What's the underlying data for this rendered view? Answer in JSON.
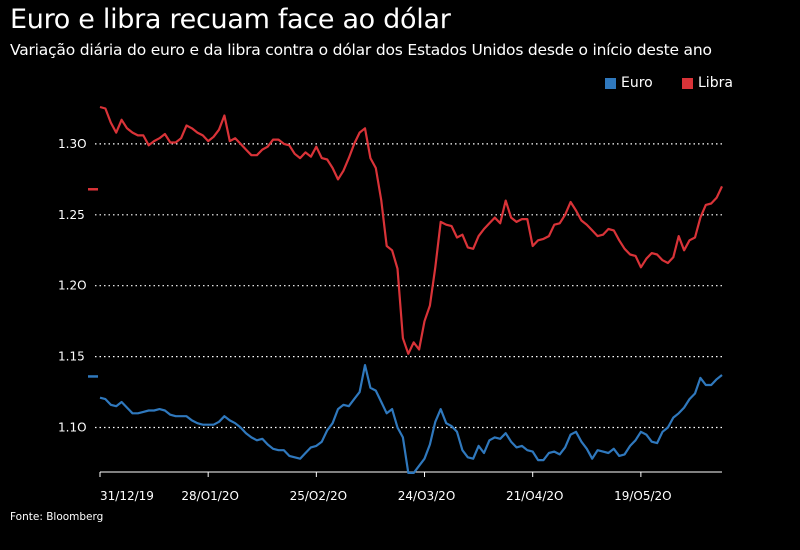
{
  "header": {
    "title": "Euro e libra recuam face ao dólar",
    "subtitle": "Variação diária do euro e da libra contra o dólar dos Estados Unidos desde o início deste ano"
  },
  "footer": {
    "source": "Fonte: Bloomberg"
  },
  "colors": {
    "euro": "#2f78bd",
    "libra": "#d93338",
    "grid": "#ffffff",
    "background": "#000000"
  },
  "chart_data": {
    "type": "line",
    "title": "Euro e libra recuam face ao dólar",
    "subtitle": "Variação diária do euro e da libra contra o dólar dos Estados Unidos desde o início deste ano",
    "ylim": [
      1.06,
      1.33
    ],
    "yticks": [
      1.1,
      1.15,
      1.2,
      1.25,
      1.3
    ],
    "ytick_labels": [
      "1.1O",
      "1.15",
      "1.2O",
      "1.25",
      "1.3O"
    ],
    "xticks": [
      0,
      20,
      40,
      60,
      80,
      100
    ],
    "xtick_labels": [
      "31/12/19",
      "28/O1/2O",
      "25/O2/2O",
      "24/O3/2O",
      "21/O4/2O",
      "19/O5/2O"
    ],
    "xlim": [
      0,
      115
    ],
    "grid": "horizontal dotted",
    "legend_position": "top-right",
    "series": [
      {
        "name": "Euro",
        "color": "#2f78bd",
        "values": [
          1.121,
          1.12,
          1.116,
          1.115,
          1.118,
          1.114,
          1.11,
          1.11,
          1.111,
          1.112,
          1.112,
          1.113,
          1.112,
          1.109,
          1.108,
          1.108,
          1.108,
          1.105,
          1.103,
          1.102,
          1.102,
          1.102,
          1.104,
          1.108,
          1.105,
          1.103,
          1.1,
          1.096,
          1.093,
          1.091,
          1.092,
          1.088,
          1.085,
          1.084,
          1.084,
          1.08,
          1.079,
          1.078,
          1.082,
          1.086,
          1.087,
          1.09,
          1.098,
          1.103,
          1.113,
          1.116,
          1.115,
          1.12,
          1.125,
          1.144,
          1.128,
          1.126,
          1.118,
          1.11,
          1.113,
          1.1,
          1.093,
          1.068,
          1.068,
          1.073,
          1.078,
          1.088,
          1.104,
          1.113,
          1.103,
          1.101,
          1.097,
          1.084,
          1.079,
          1.078,
          1.087,
          1.082,
          1.091,
          1.093,
          1.092,
          1.096,
          1.09,
          1.086,
          1.087,
          1.084,
          1.083,
          1.077,
          1.077,
          1.082,
          1.083,
          1.081,
          1.086,
          1.095,
          1.097,
          1.09,
          1.085,
          1.078,
          1.084,
          1.083,
          1.082,
          1.085,
          1.08,
          1.081,
          1.087,
          1.091,
          1.097,
          1.095,
          1.09,
          1.089,
          1.097,
          1.1,
          1.107,
          1.11,
          1.114,
          1.12,
          1.124,
          1.135,
          1.13,
          1.13,
          1.134,
          1.137
        ]
      },
      {
        "name": "Libra",
        "color": "#d93338",
        "values": [
          1.326,
          1.325,
          1.315,
          1.308,
          1.317,
          1.311,
          1.308,
          1.306,
          1.306,
          1.299,
          1.302,
          1.304,
          1.307,
          1.301,
          1.301,
          1.304,
          1.313,
          1.311,
          1.308,
          1.306,
          1.302,
          1.305,
          1.31,
          1.32,
          1.302,
          1.304,
          1.3,
          1.296,
          1.292,
          1.292,
          1.296,
          1.298,
          1.303,
          1.303,
          1.3,
          1.299,
          1.293,
          1.29,
          1.294,
          1.291,
          1.298,
          1.29,
          1.289,
          1.283,
          1.275,
          1.281,
          1.29,
          1.3,
          1.308,
          1.311,
          1.29,
          1.283,
          1.26,
          1.228,
          1.225,
          1.212,
          1.163,
          1.152,
          1.16,
          1.155,
          1.175,
          1.186,
          1.213,
          1.245,
          1.243,
          1.242,
          1.234,
          1.236,
          1.227,
          1.226,
          1.235,
          1.24,
          1.244,
          1.248,
          1.244,
          1.26,
          1.248,
          1.245,
          1.247,
          1.247,
          1.228,
          1.232,
          1.233,
          1.235,
          1.243,
          1.244,
          1.25,
          1.259,
          1.253,
          1.246,
          1.243,
          1.239,
          1.235,
          1.236,
          1.24,
          1.239,
          1.232,
          1.226,
          1.222,
          1.221,
          1.213,
          1.219,
          1.223,
          1.222,
          1.218,
          1.216,
          1.22,
          1.235,
          1.225,
          1.232,
          1.234,
          1.248,
          1.257,
          1.258,
          1.262,
          1.27
        ]
      }
    ],
    "annotations": [
      {
        "series": "Euro",
        "marker": "dash at left axis",
        "y": 1.136
      },
      {
        "series": "Libra",
        "marker": "dash at left axis",
        "y": 1.268
      }
    ]
  }
}
